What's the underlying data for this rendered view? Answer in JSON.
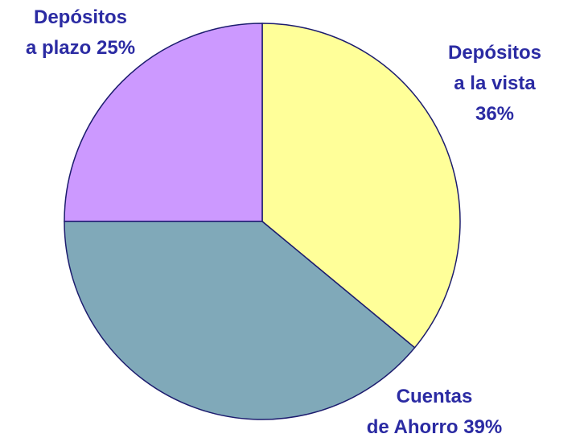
{
  "chart_data": {
    "type": "pie",
    "categories": [
      "Depósitos\na la vista",
      "Cuentas\nde Ahorro",
      "Depósitos\na plazo"
    ],
    "values": [
      36,
      39,
      25
    ],
    "value_labels": [
      "36%",
      "39%",
      "25%"
    ],
    "colors": [
      "#ffff99",
      "#80a9b9",
      "#cc99ff"
    ]
  }
}
